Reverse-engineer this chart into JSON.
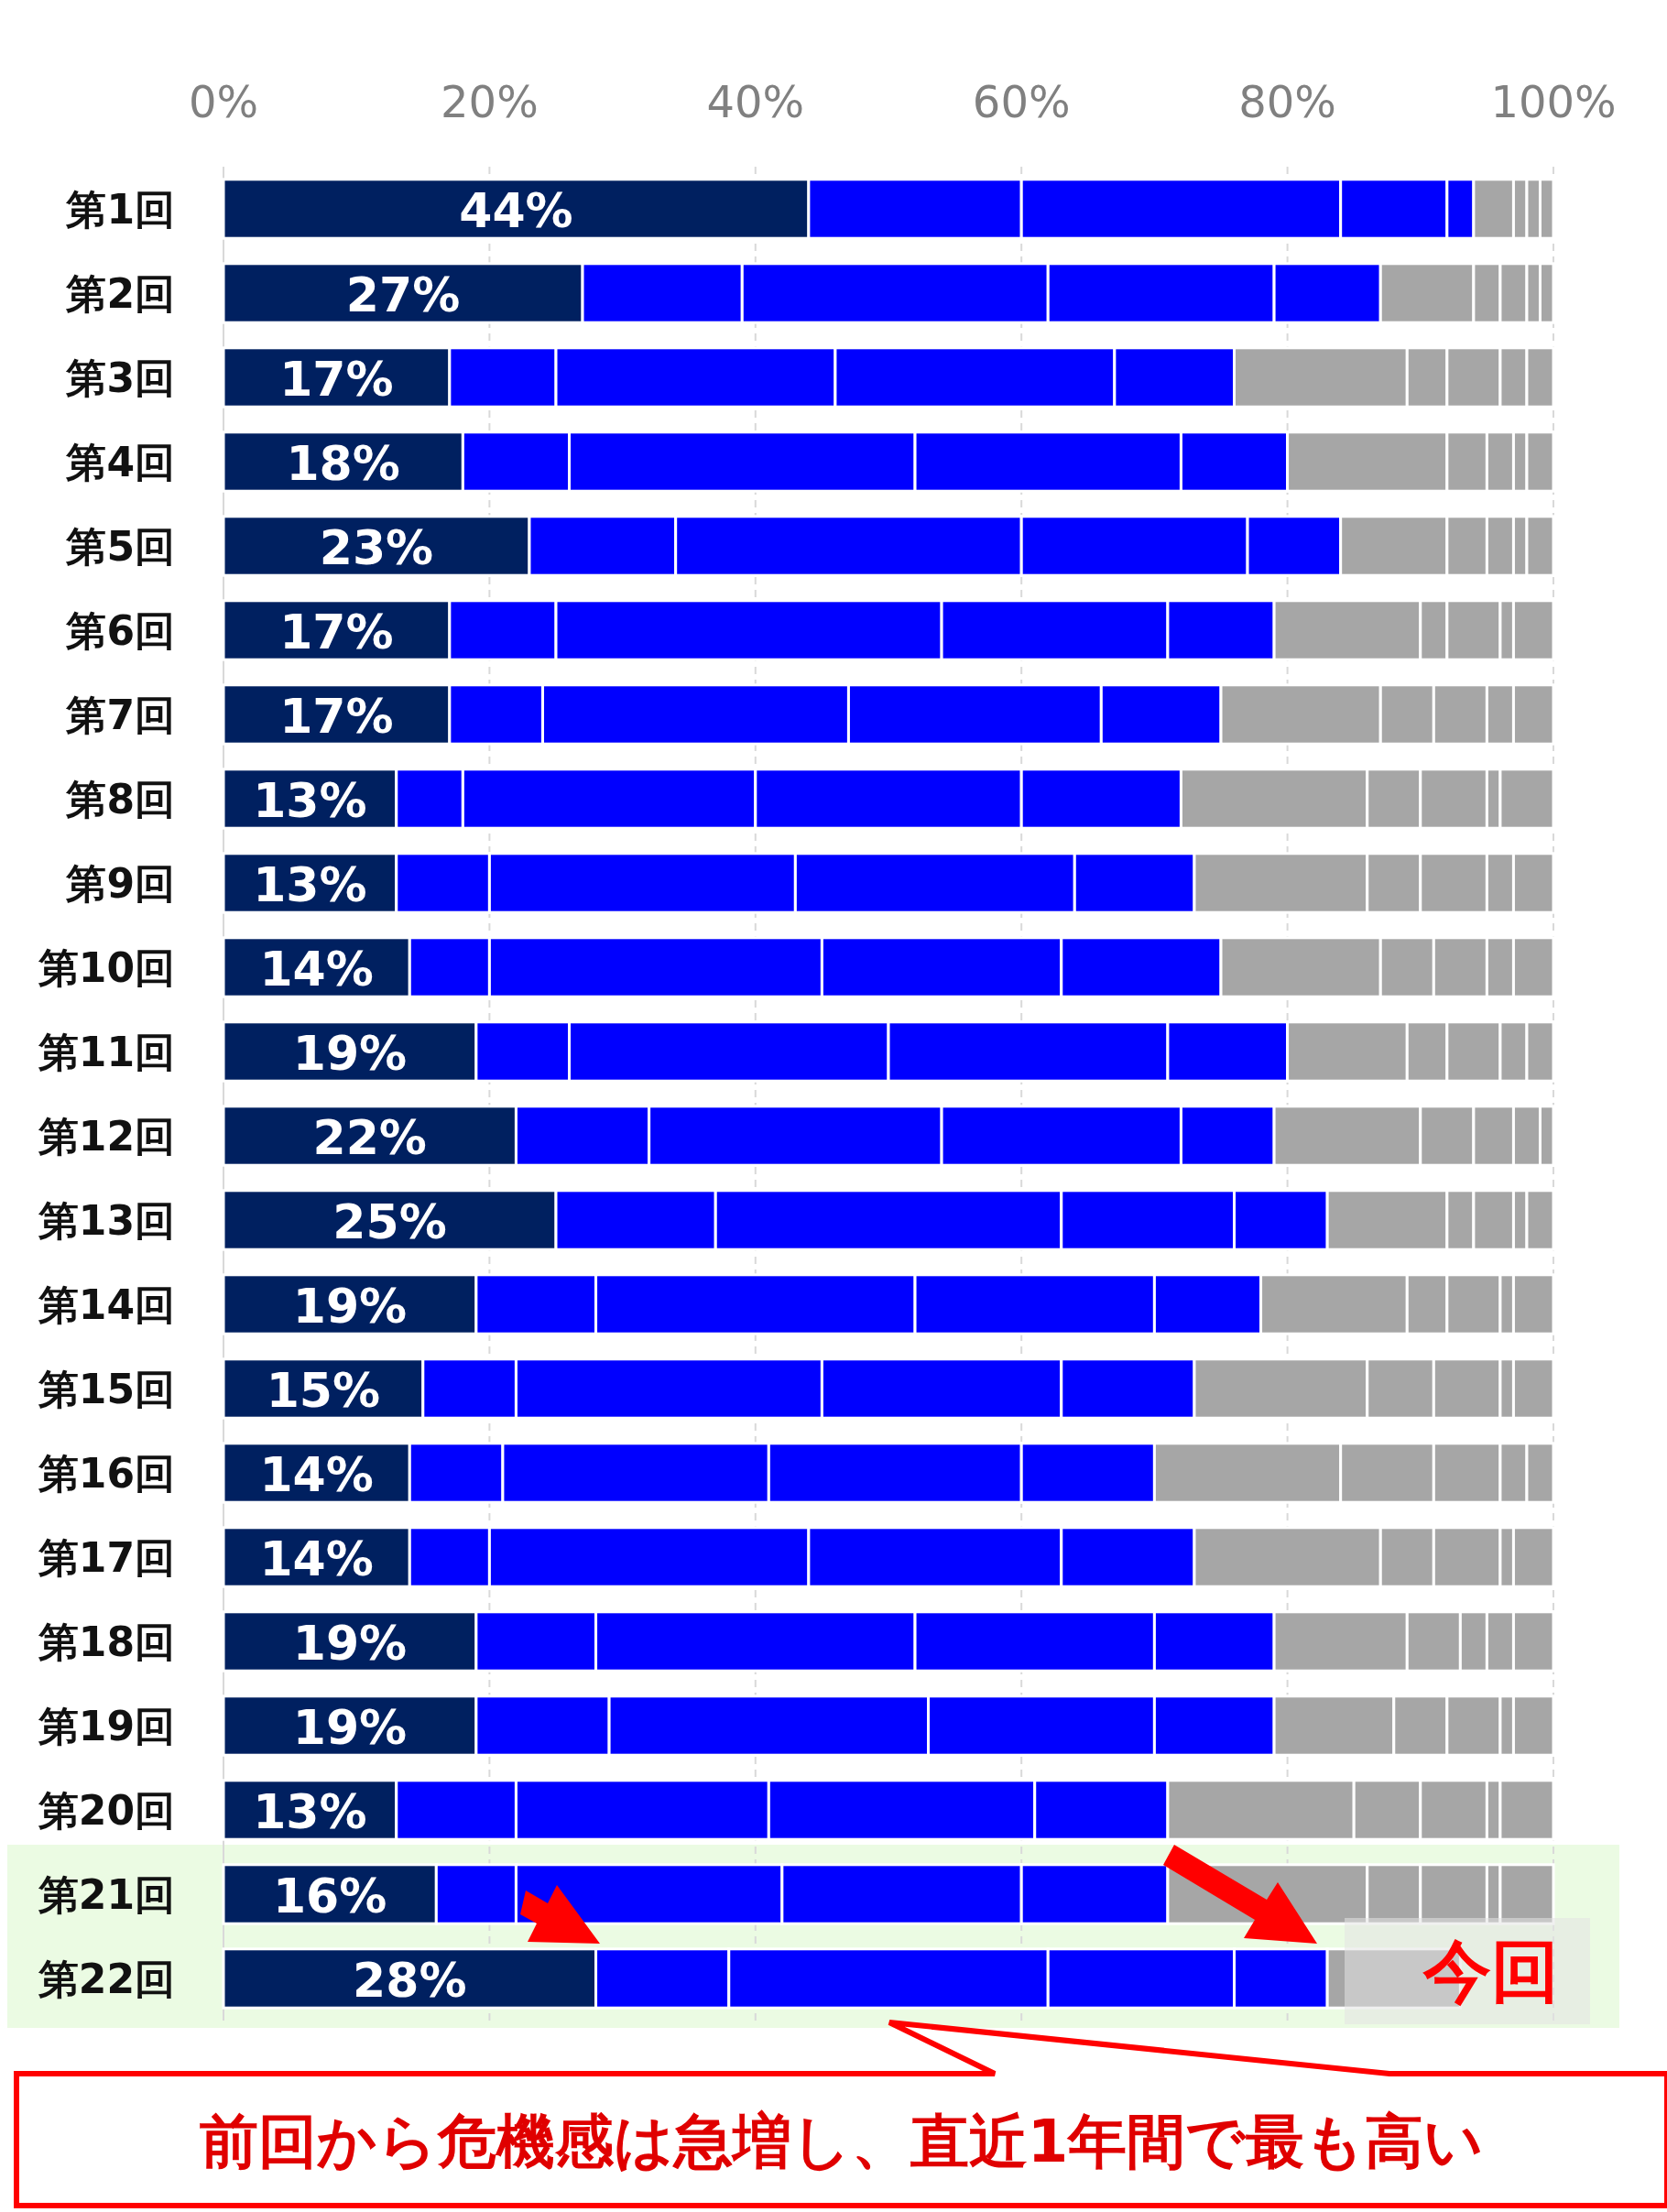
{
  "chart_data": {
    "type": "bar",
    "orientation": "horizontal",
    "stacked": true,
    "categories": [
      "第1回",
      "第2回",
      "第3回",
      "第4回",
      "第5回",
      "第6回",
      "第7回",
      "第8回",
      "第9回",
      "第10回",
      "第11回",
      "第12回",
      "第13回",
      "第14回",
      "第15回",
      "第16回",
      "第17回",
      "第18回",
      "第19回",
      "第20回",
      "第21回",
      "第22回"
    ],
    "series": [
      {
        "color": "#002060",
        "values": [
          44,
          27,
          17,
          18,
          23,
          17,
          17,
          13,
          13,
          14,
          19,
          22,
          25,
          19,
          15,
          14,
          14,
          19,
          19,
          13,
          16,
          28
        ],
        "value_labels": [
          "44%",
          "27%",
          "17%",
          "18%",
          "23%",
          "17%",
          "17%",
          "13%",
          "13%",
          "14%",
          "19%",
          "22%",
          "25%",
          "19%",
          "15%",
          "14%",
          "14%",
          "19%",
          "19%",
          "13%",
          "16%",
          "28%"
        ]
      },
      {
        "color": "#0000ff",
        "values": [
          16,
          12,
          8,
          8,
          11,
          8,
          7,
          5,
          7,
          6,
          7,
          10,
          12,
          9,
          7,
          7,
          6,
          9,
          10,
          9,
          6,
          10
        ]
      },
      {
        "color": "#0000ff",
        "values": [
          24,
          23,
          21,
          26,
          26,
          29,
          23,
          22,
          23,
          25,
          24,
          22,
          26,
          24,
          23,
          20,
          24,
          24,
          24,
          19,
          20,
          24
        ]
      },
      {
        "color": "#0000ff",
        "values": [
          8,
          17,
          21,
          20,
          17,
          17,
          19,
          20,
          21,
          18,
          21,
          18,
          13,
          18,
          18,
          19,
          19,
          18,
          17,
          20,
          18,
          14
        ]
      },
      {
        "color": "#0000ff",
        "values": [
          2,
          8,
          9,
          8,
          7,
          8,
          9,
          12,
          9,
          12,
          9,
          7,
          7,
          8,
          10,
          10,
          10,
          9,
          9,
          10,
          11,
          7
        ]
      },
      {
        "color": "#a6a6a6",
        "values": [
          3,
          7,
          13,
          12,
          8,
          11,
          12,
          14,
          13,
          12,
          9,
          11,
          9,
          11,
          13,
          14,
          14,
          10,
          9,
          14,
          15,
          10
        ]
      },
      {
        "color": "#a6a6a6",
        "values": [
          1,
          2,
          3,
          3,
          3,
          2,
          4,
          4,
          4,
          4,
          3,
          4,
          2,
          3,
          5,
          7,
          4,
          4,
          4,
          5,
          4,
          null
        ]
      },
      {
        "color": "#a6a6a6",
        "values": [
          1,
          2,
          4,
          2,
          2,
          4,
          4,
          5,
          5,
          4,
          4,
          3,
          3,
          4,
          5,
          5,
          5,
          2,
          4,
          5,
          5,
          null
        ]
      },
      {
        "color": "#a6a6a6",
        "values": [
          1,
          1,
          2,
          1,
          1,
          1,
          2,
          1,
          2,
          2,
          2,
          2,
          1,
          1,
          1,
          2,
          1,
          2,
          1,
          1,
          1,
          null
        ]
      },
      {
        "color": "#a6a6a6",
        "values": [
          0,
          1,
          2,
          2,
          2,
          3,
          3,
          4,
          3,
          3,
          2,
          1,
          2,
          3,
          3,
          2,
          3,
          3,
          3,
          4,
          4,
          null
        ]
      }
    ],
    "xlim": [
      0,
      100
    ],
    "xticks": [
      {
        "value": 0,
        "label": "0%"
      },
      {
        "value": 20,
        "label": "20%"
      },
      {
        "value": 40,
        "label": "40%"
      },
      {
        "value": 60,
        "label": "60%"
      },
      {
        "value": 80,
        "label": "80%"
      },
      {
        "value": 100,
        "label": "100%"
      }
    ],
    "grid": "x",
    "bands": [
      {
        "axis": "y",
        "from": "第21回",
        "to": "第22回",
        "color": "#ebfbe3"
      }
    ],
    "annotations": [
      "今回",
      "前回から危機感は急増し、直近1年間で最も高い"
    ]
  }
}
